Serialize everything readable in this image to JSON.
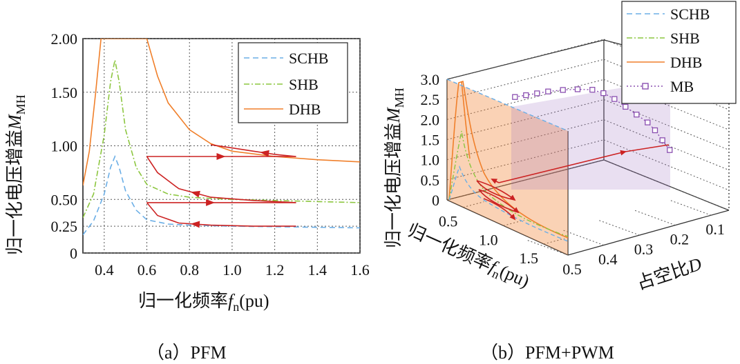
{
  "chart_data": [
    {
      "type": "line",
      "panel": "a",
      "caption": "（a）PFM",
      "xlabel": "归一化频率",
      "xlabel_var": "f",
      "xlabel_sub": "n",
      "xlabel_unit": "(pu)",
      "ylabel": "归一化电压增益",
      "ylabel_var": "M",
      "ylabel_sub": "MH",
      "xlim": [
        0.3,
        1.6
      ],
      "ylim": [
        0,
        2.0
      ],
      "xticks": [
        "0.4",
        "0.6",
        "0.8",
        "1.0",
        "1.2",
        "1.4",
        "1.6"
      ],
      "yticks": [
        "0",
        "0.25",
        "0.50",
        "1.00",
        "1.50",
        "2.00"
      ],
      "legend_position": "top-right",
      "series": [
        {
          "name": "SCHB",
          "style": "dashed",
          "color": "#6aaee6",
          "x": [
            0.3,
            0.35,
            0.4,
            0.43,
            0.45,
            0.47,
            0.5,
            0.55,
            0.6,
            0.7,
            0.8,
            1.0,
            1.2,
            1.4,
            1.6
          ],
          "y": [
            0.17,
            0.3,
            0.55,
            0.8,
            0.9,
            0.8,
            0.58,
            0.4,
            0.31,
            0.27,
            0.26,
            0.25,
            0.245,
            0.24,
            0.235
          ]
        },
        {
          "name": "SHB",
          "style": "dashdot",
          "color": "#8cc63f",
          "x": [
            0.3,
            0.35,
            0.4,
            0.43,
            0.45,
            0.47,
            0.5,
            0.55,
            0.6,
            0.7,
            0.8,
            1.0,
            1.2,
            1.4,
            1.6
          ],
          "y": [
            0.33,
            0.55,
            1.1,
            1.6,
            1.8,
            1.6,
            1.15,
            0.8,
            0.64,
            0.55,
            0.52,
            0.5,
            0.49,
            0.48,
            0.47
          ]
        },
        {
          "name": "DHB",
          "style": "solid",
          "color": "#f07f2a",
          "x": [
            0.3,
            0.33,
            0.36,
            0.385,
            0.6,
            0.65,
            0.7,
            0.8,
            0.9,
            1.0,
            1.2,
            1.4,
            1.6
          ],
          "y": [
            0.63,
            0.95,
            1.5,
            2.0,
            2.0,
            1.65,
            1.4,
            1.15,
            1.02,
            0.95,
            0.9,
            0.87,
            0.85
          ]
        }
      ],
      "trajectory": {
        "name": "control path",
        "color": "#cc2222",
        "segments": [
          {
            "x": [
              0.6,
              0.7,
              0.8,
              0.9,
              1.0,
              1.1,
              1.2,
              1.3
            ],
            "y": [
              0.9,
              0.9,
              0.9,
              0.9,
              0.9,
              0.9,
              0.9,
              0.9
            ]
          },
          {
            "x": [
              1.3,
              1.2,
              1.1,
              1.0,
              0.9
            ],
            "y": [
              0.9,
              0.92,
              0.95,
              0.98,
              1.01
            ]
          },
          {
            "x": [
              1.3,
              1.1,
              0.9,
              0.75,
              0.65,
              0.6
            ],
            "y": [
              0.47,
              0.49,
              0.52,
              0.6,
              0.75,
              0.9
            ]
          },
          {
            "x": [
              0.6,
              0.8,
              1.0,
              1.2,
              1.3
            ],
            "y": [
              0.47,
              0.47,
              0.47,
              0.47,
              0.47
            ]
          },
          {
            "x": [
              1.3,
              1.1,
              0.9,
              0.75,
              0.65,
              0.6
            ],
            "y": [
              0.25,
              0.25,
              0.26,
              0.28,
              0.35,
              0.47
            ]
          }
        ]
      }
    },
    {
      "type": "line3d",
      "panel": "b",
      "caption": "（b）PFM+PWM",
      "xlabel": "归一化频率",
      "xlabel_var": "f",
      "xlabel_sub": "n",
      "xlabel_unit": "(pu)",
      "ylabel": "归一化电压增益",
      "ylabel_var": "M",
      "ylabel_sub": "MH",
      "dlabel": "占空比",
      "dlabel_var": "D",
      "zticks": [
        "0",
        "0.5",
        "1.0",
        "1.5",
        "2.0",
        "2.5",
        "3.0"
      ],
      "fticks": [
        "0.5",
        "1.0",
        "1.5"
      ],
      "dticks": [
        "0.5",
        "0.4",
        "0.3",
        "0.2",
        "0.1"
      ],
      "zlim": [
        0,
        3.0
      ],
      "flim": [
        0.3,
        1.8
      ],
      "dlim": [
        0.5,
        0.05
      ],
      "legend_position": "top-right",
      "series": [
        {
          "name": "SCHB",
          "style": "dashed",
          "color": "#6aaee6"
        },
        {
          "name": "SHB",
          "style": "dashdot",
          "color": "#8cc63f"
        },
        {
          "name": "DHB",
          "style": "solid",
          "color": "#f07f2a"
        },
        {
          "name": "MB",
          "style": "dotted-square",
          "color": "#8a4fb0",
          "d": [
            0.49,
            0.46,
            0.43,
            0.4,
            0.36,
            0.32,
            0.28,
            0.25,
            0.22,
            0.19,
            0.16,
            0.13,
            0.11,
            0.09,
            0.07
          ],
          "m": [
            2.3,
            2.34,
            2.38,
            2.42,
            2.45,
            2.46,
            2.44,
            2.35,
            2.2,
            2.0,
            1.8,
            1.6,
            1.4,
            1.15,
            0.9
          ]
        }
      ]
    }
  ]
}
